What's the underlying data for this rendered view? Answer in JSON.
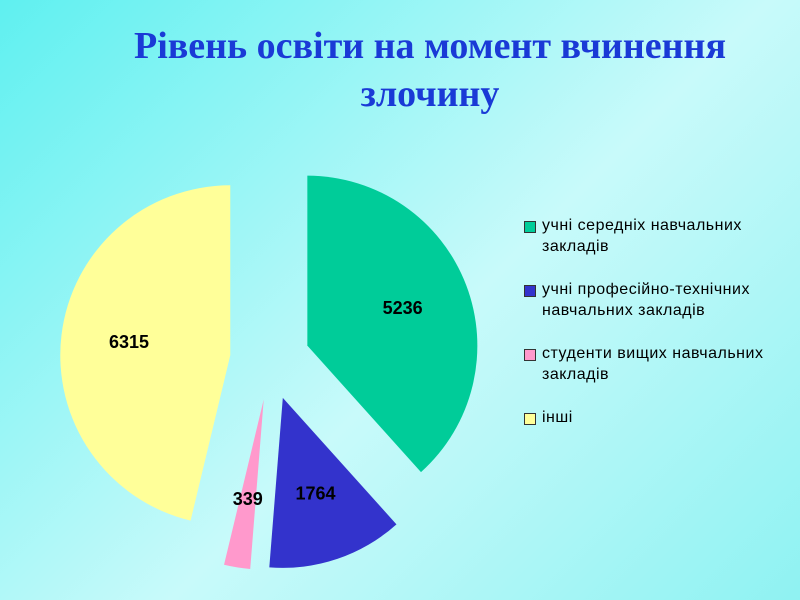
{
  "chart_data": {
    "type": "pie",
    "title": "Рівень освіти на момент вчинення злочину",
    "categories": [
      "учні середніх навчальних закладів",
      "учні професійно-технічних навчальних закладів",
      "студенти вищих навчальних закладів",
      "інші"
    ],
    "values": [
      5236,
      1764,
      339,
      6315
    ],
    "colors": [
      "#00cc99",
      "#3333cc",
      "#ff99cc",
      "#ffff99"
    ],
    "legend": "right"
  }
}
